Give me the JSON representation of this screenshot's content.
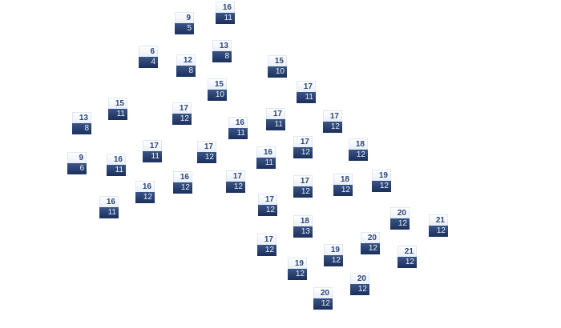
{
  "colors": {
    "high_bg": "#ffffff",
    "high_text": "#2c4677",
    "low_bg": "#22386a",
    "low_text": "#e8eef8"
  },
  "markers": [
    {
      "high": "16",
      "low": "11"
    },
    {
      "high": "9",
      "low": "5"
    },
    {
      "high": "6",
      "low": "4"
    },
    {
      "high": "12",
      "low": "8"
    },
    {
      "high": "13",
      "low": "8"
    },
    {
      "high": "15",
      "low": "10"
    },
    {
      "high": "15",
      "low": "10"
    },
    {
      "high": "17",
      "low": "11"
    },
    {
      "high": "15",
      "low": "11"
    },
    {
      "high": "17",
      "low": "12"
    },
    {
      "high": "13",
      "low": "8"
    },
    {
      "high": "16",
      "low": "11"
    },
    {
      "high": "17",
      "low": "11"
    },
    {
      "high": "17",
      "low": "12"
    },
    {
      "high": "17",
      "low": "11"
    },
    {
      "high": "17",
      "low": "12"
    },
    {
      "high": "16",
      "low": "11"
    },
    {
      "high": "17",
      "low": "12"
    },
    {
      "high": "18",
      "low": "12"
    },
    {
      "high": "9",
      "low": "6"
    },
    {
      "high": "16",
      "low": "11"
    },
    {
      "high": "16",
      "low": "12"
    },
    {
      "high": "17",
      "low": "12"
    },
    {
      "high": "17",
      "low": "12"
    },
    {
      "high": "18",
      "low": "12"
    },
    {
      "high": "19",
      "low": "12"
    },
    {
      "high": "16",
      "low": "12"
    },
    {
      "high": "16",
      "low": "11"
    },
    {
      "high": "17",
      "low": "12"
    },
    {
      "high": "20",
      "low": "12"
    },
    {
      "high": "21",
      "low": "12"
    },
    {
      "high": "18",
      "low": "13"
    },
    {
      "high": "20",
      "low": "12"
    },
    {
      "high": "17",
      "low": "12"
    },
    {
      "high": "21",
      "low": "12"
    },
    {
      "high": "19",
      "low": "12"
    },
    {
      "high": "19",
      "low": "12"
    },
    {
      "high": "20",
      "low": "12"
    },
    {
      "high": "20",
      "low": "12"
    }
  ]
}
